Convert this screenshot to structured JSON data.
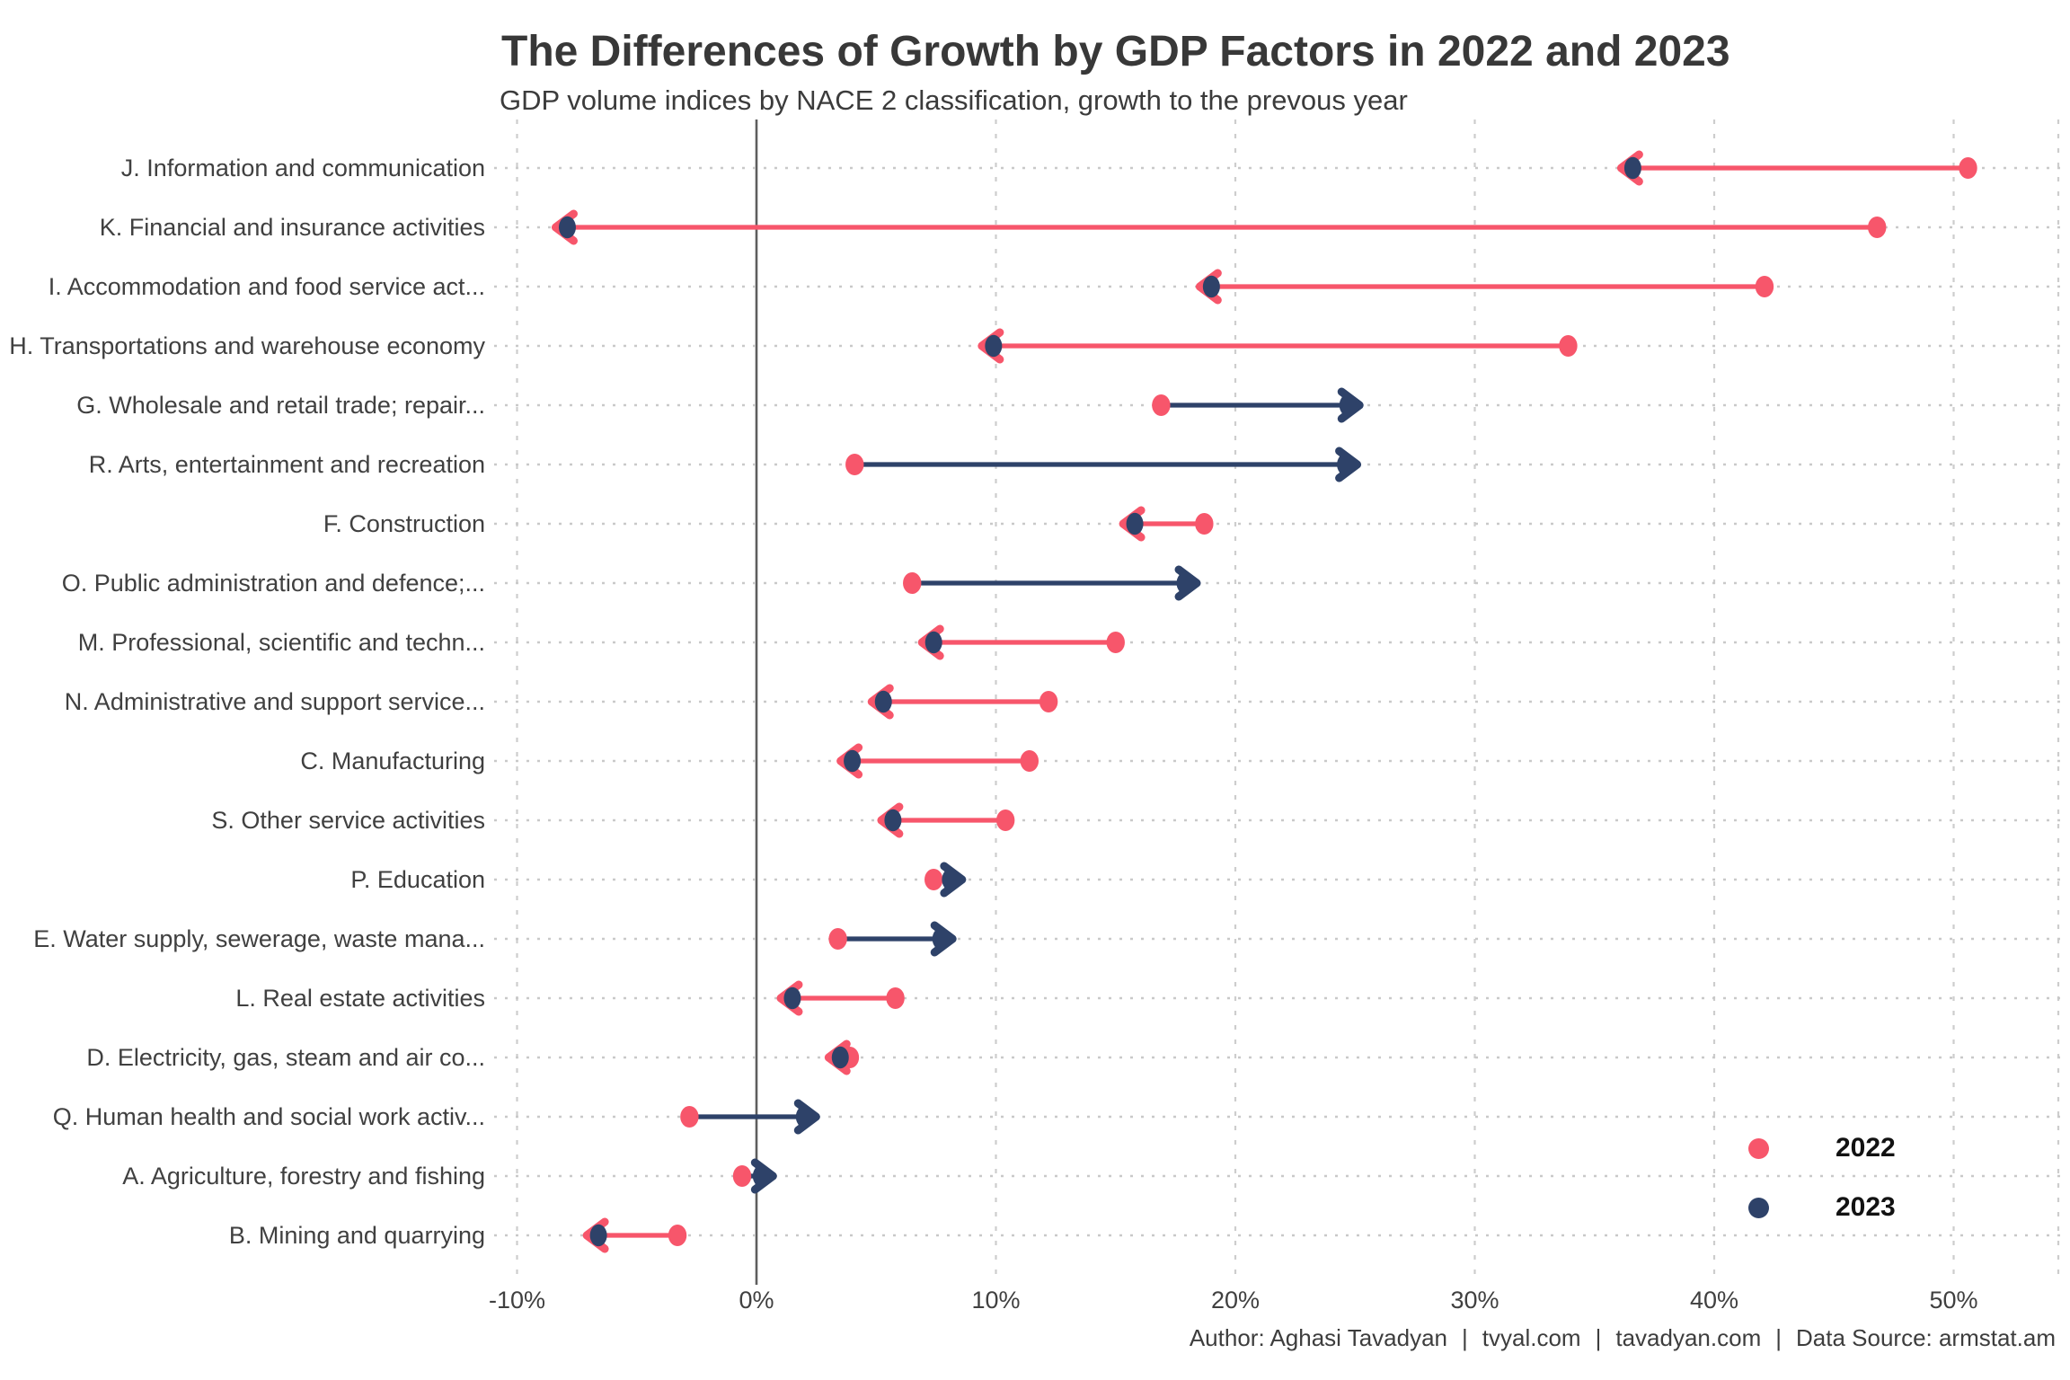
{
  "title": "The Differences of Growth by GDP Factors in 2022 and 2023",
  "subtitle": "GDP volume indices by NACE 2 classification, growth to the prevous year",
  "legend": {
    "items": [
      {
        "label": "2022",
        "color": "#F7566B"
      },
      {
        "label": "2023",
        "color": "#2E4269"
      }
    ]
  },
  "footer": {
    "separator": "|",
    "parts": [
      "Author: Aghasi Tavadyan",
      "tvyal.com",
      "tavadyan.com",
      "Data Source: armstat.am"
    ]
  },
  "colors": {
    "pink_2022": "#F7566B",
    "navy_2023": "#2E4269",
    "increase_arrow": "#2E4269",
    "decrease_arrow": "#F7566B",
    "grid_dashed": "#CDCDCD",
    "row_dotted": "#C9C9C9",
    "zero_line": "#5E5E5E",
    "text_dark": "#404040"
  },
  "chart_data": {
    "type": "dumbbell-arrow",
    "title": "The Differences of Growth by GDP Factors in 2022 and 2023",
    "subtitle": "GDP volume indices by NACE 2 classification, growth to the prevous year",
    "xlabel": "",
    "ylabel": "",
    "x_unit": "percent",
    "xlim": [
      -11,
      54.5
    ],
    "x_ticks": [
      {
        "value": -10,
        "label": "-10%"
      },
      {
        "value": 0,
        "label": "0%"
      },
      {
        "value": 10,
        "label": "10%"
      },
      {
        "value": 20,
        "label": "20%"
      },
      {
        "value": 30,
        "label": "30%"
      },
      {
        "value": 40,
        "label": "40%"
      },
      {
        "value": 50,
        "label": "50%"
      }
    ],
    "grid": "dashed-vertical, dotted-row-lines, solid zero line",
    "legend_position": "bottom-right",
    "categories": [
      "J. Information and communication",
      "K. Financial and insurance activities",
      "I. Accommodation and food service act...",
      "H. Transportations and warehouse economy",
      "G. Wholesale and retail trade; repair...",
      "R. Arts, entertainment and recreation",
      "F. Construction",
      "O. Public administration and defence;...",
      "M. Professional, scientific and techn...",
      "N. Administrative and support service...",
      "C. Manufacturing",
      "S. Other service activities",
      "P. Education",
      "E. Water supply, sewerage, waste mana...",
      "L. Real estate activities",
      "D. Electricity, gas, steam and air co...",
      "Q. Human health and social work activ...",
      "A. Agriculture, forestry and fishing",
      "B. Mining and quarrying"
    ],
    "series": [
      {
        "name": "2022",
        "values": [
          50.6,
          46.8,
          42.1,
          33.9,
          16.9,
          4.1,
          18.7,
          6.5,
          15.0,
          12.2,
          11.4,
          10.4,
          7.4,
          3.4,
          5.8,
          3.9,
          -2.8,
          -0.6,
          -3.3
        ]
      },
      {
        "name": "2023",
        "values": [
          36.6,
          -7.9,
          19.0,
          9.9,
          24.7,
          24.6,
          15.8,
          17.9,
          7.4,
          5.3,
          4.0,
          5.7,
          8.1,
          7.7,
          1.5,
          3.5,
          2.0,
          0.2,
          -6.6
        ]
      }
    ],
    "arrow_semantics": "arrow drawn from 2022 value to 2023 value; navy arrow = growth increased, pink arrow = growth decreased"
  }
}
